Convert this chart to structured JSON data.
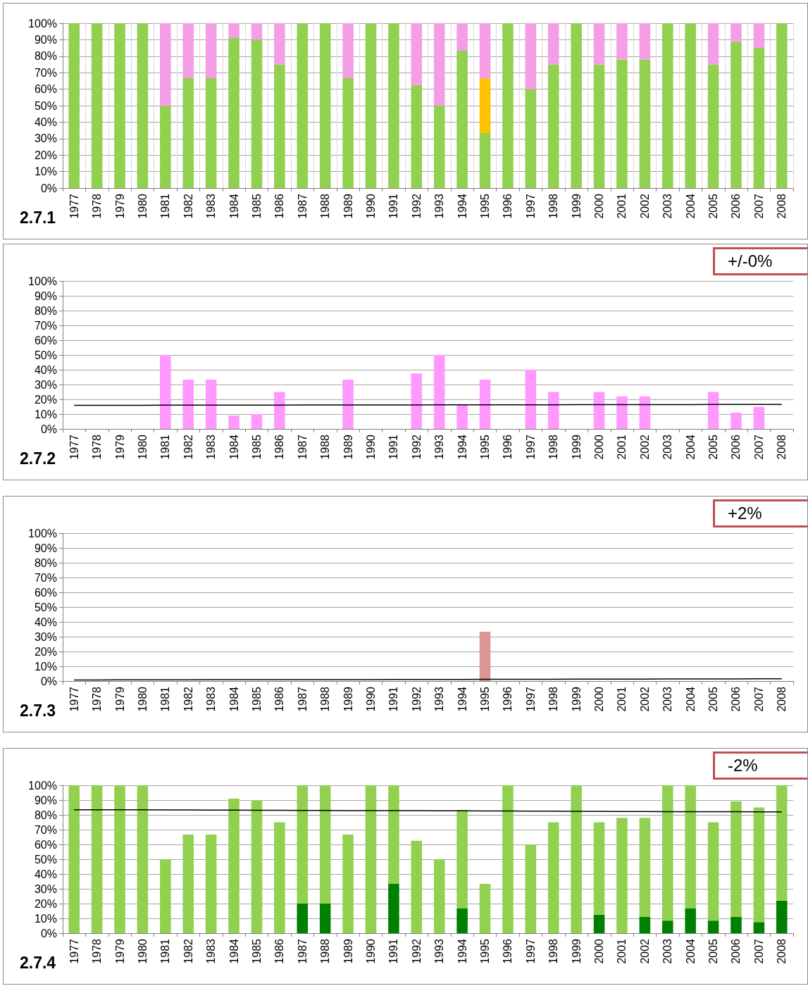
{
  "chart_data": [
    {
      "type": "bar",
      "title": "2.7.1",
      "stacked": true,
      "grid": true,
      "categories": [
        "1977",
        "1978",
        "1979",
        "1980",
        "1981",
        "1982",
        "1983",
        "1984",
        "1985",
        "1986",
        "1987",
        "1988",
        "1989",
        "1990",
        "1991",
        "1992",
        "1993",
        "1994",
        "1995",
        "1996",
        "1997",
        "1998",
        "1999",
        "2000",
        "2001",
        "2002",
        "2003",
        "2004",
        "2005",
        "2006",
        "2007",
        "2008"
      ],
      "ylim": [
        0,
        100
      ],
      "yticks": [
        {
          "value": 0,
          "label": "0%"
        },
        {
          "value": 10,
          "label": "10%"
        },
        {
          "value": 20,
          "label": "20%"
        },
        {
          "value": 30,
          "label": "30%"
        },
        {
          "value": 40,
          "label": "40%"
        },
        {
          "value": 50,
          "label": "50%"
        },
        {
          "value": 60,
          "label": "60%"
        },
        {
          "value": 70,
          "label": "70%"
        },
        {
          "value": 80,
          "label": "80%"
        },
        {
          "value": 90,
          "label": "90%"
        },
        {
          "value": 100,
          "label": "100%"
        }
      ],
      "series": [
        {
          "color": "#92d050",
          "values": [
            100,
            100,
            100,
            100,
            50,
            66.7,
            66.7,
            91,
            90,
            75,
            100,
            100,
            66.7,
            100,
            100,
            62.5,
            50,
            83.3,
            33.3,
            100,
            60,
            75,
            100,
            75,
            78,
            78,
            100,
            100,
            75,
            89,
            85,
            100
          ]
        },
        {
          "color": "#ffc000",
          "values": [
            null,
            null,
            null,
            null,
            null,
            null,
            null,
            null,
            null,
            null,
            null,
            null,
            null,
            null,
            null,
            null,
            null,
            null,
            33.3,
            null,
            null,
            null,
            null,
            null,
            null,
            null,
            null,
            null,
            null,
            null,
            null,
            null
          ]
        },
        {
          "color": "#f59ee6",
          "values": [
            null,
            null,
            null,
            null,
            50,
            33.3,
            33.3,
            9,
            10,
            25,
            null,
            null,
            33.3,
            null,
            null,
            37.5,
            50,
            16.7,
            33.3,
            null,
            40,
            25,
            null,
            25,
            22,
            22,
            null,
            null,
            25,
            11,
            15,
            null
          ]
        }
      ]
    },
    {
      "type": "bar",
      "title": "2.7.2",
      "grid": "y",
      "annotations": [
        "+/-0%"
      ],
      "categories": [
        "1977",
        "1978",
        "1979",
        "1980",
        "1981",
        "1982",
        "1983",
        "1984",
        "1985",
        "1986",
        "1987",
        "1988",
        "1989",
        "1990",
        "1991",
        "1992",
        "1993",
        "1994",
        "1995",
        "1996",
        "1997",
        "1998",
        "1999",
        "2000",
        "2001",
        "2002",
        "2003",
        "2004",
        "2005",
        "2006",
        "2007",
        "2008"
      ],
      "ylim": [
        0,
        100
      ],
      "yticks": [
        {
          "value": 0,
          "label": "0%"
        },
        {
          "value": 10,
          "label": "10%"
        },
        {
          "value": 20,
          "label": "20%"
        },
        {
          "value": 30,
          "label": "30%"
        },
        {
          "value": 40,
          "label": "40%"
        },
        {
          "value": 50,
          "label": "50%"
        },
        {
          "value": 60,
          "label": "60%"
        },
        {
          "value": 70,
          "label": "70%"
        },
        {
          "value": 80,
          "label": "80%"
        },
        {
          "value": 90,
          "label": "90%"
        },
        {
          "value": 100,
          "label": "100%"
        }
      ],
      "series": [
        {
          "color": "#ff99ff",
          "values": [
            null,
            null,
            null,
            null,
            50,
            33.3,
            33.3,
            9,
            10,
            25,
            null,
            null,
            33.3,
            null,
            null,
            37.5,
            50,
            16.7,
            33.3,
            null,
            40,
            25,
            null,
            25,
            22,
            22,
            null,
            null,
            25,
            11,
            15,
            null
          ]
        },
        {
          "type": "line",
          "color": "#000000",
          "values": [
            16.0,
            16.0,
            16.0,
            16.0,
            16.1,
            16.1,
            16.1,
            16.1,
            16.1,
            16.1,
            16.2,
            16.2,
            16.2,
            16.2,
            16.2,
            16.2,
            16.3,
            16.3,
            16.3,
            16.3,
            16.3,
            16.3,
            16.4,
            16.4,
            16.4,
            16.4,
            16.4,
            16.4,
            16.5,
            16.5,
            16.5,
            16.5
          ]
        }
      ]
    },
    {
      "type": "bar",
      "title": "2.7.3",
      "grid": "y",
      "annotations": [
        "+2%"
      ],
      "categories": [
        "1977",
        "1978",
        "1979",
        "1980",
        "1981",
        "1982",
        "1983",
        "1984",
        "1985",
        "1986",
        "1987",
        "1988",
        "1989",
        "1990",
        "1991",
        "1992",
        "1993",
        "1994",
        "1995",
        "1996",
        "1997",
        "1998",
        "1999",
        "2000",
        "2001",
        "2002",
        "2003",
        "2004",
        "2005",
        "2006",
        "2007",
        "2008"
      ],
      "ylim": [
        0,
        100
      ],
      "yticks": [
        {
          "value": 0,
          "label": "0%"
        },
        {
          "value": 10,
          "label": "10%"
        },
        {
          "value": 20,
          "label": "20%"
        },
        {
          "value": 30,
          "label": "30%"
        },
        {
          "value": 40,
          "label": "40%"
        },
        {
          "value": 50,
          "label": "50%"
        },
        {
          "value": 60,
          "label": "60%"
        },
        {
          "value": 70,
          "label": "70%"
        },
        {
          "value": 80,
          "label": "80%"
        },
        {
          "value": 90,
          "label": "90%"
        },
        {
          "value": 100,
          "label": "100%"
        }
      ],
      "series": [
        {
          "color": "#d99694",
          "values": [
            null,
            null,
            null,
            null,
            null,
            null,
            null,
            null,
            null,
            null,
            null,
            null,
            null,
            null,
            null,
            null,
            null,
            null,
            33.3,
            null,
            null,
            null,
            null,
            null,
            null,
            null,
            null,
            null,
            null,
            null,
            null,
            null
          ]
        },
        {
          "type": "line",
          "color": "#000000",
          "values": [
            0.7,
            0.7,
            0.8,
            0.8,
            0.8,
            0.8,
            0.9,
            0.9,
            0.9,
            0.9,
            1.0,
            1.0,
            1.0,
            1.0,
            1.1,
            1.1,
            1.1,
            1.1,
            1.2,
            1.2,
            1.2,
            1.2,
            1.3,
            1.3,
            1.3,
            1.3,
            1.4,
            1.4,
            1.4,
            1.4,
            1.5,
            1.5
          ]
        }
      ]
    },
    {
      "type": "bar",
      "title": "2.7.4",
      "stacked": true,
      "grid": "y",
      "annotations": [
        "-2%"
      ],
      "categories": [
        "1977",
        "1978",
        "1979",
        "1980",
        "1981",
        "1982",
        "1983",
        "1984",
        "1985",
        "1986",
        "1987",
        "1988",
        "1989",
        "1990",
        "1991",
        "1992",
        "1993",
        "1994",
        "1995",
        "1996",
        "1997",
        "1998",
        "1999",
        "2000",
        "2001",
        "2002",
        "2003",
        "2004",
        "2005",
        "2006",
        "2007",
        "2008"
      ],
      "ylim": [
        0,
        100
      ],
      "yticks": [
        {
          "value": 0,
          "label": "0%"
        },
        {
          "value": 10,
          "label": "10%"
        },
        {
          "value": 20,
          "label": "20%"
        },
        {
          "value": 30,
          "label": "30%"
        },
        {
          "value": 40,
          "label": "40%"
        },
        {
          "value": 50,
          "label": "50%"
        },
        {
          "value": 60,
          "label": "60%"
        },
        {
          "value": 70,
          "label": "70%"
        },
        {
          "value": 80,
          "label": "80%"
        },
        {
          "value": 90,
          "label": "90%"
        },
        {
          "value": 100,
          "label": "100%"
        }
      ],
      "series": [
        {
          "color": "#008000",
          "values": [
            null,
            null,
            null,
            null,
            null,
            null,
            null,
            null,
            null,
            null,
            20,
            20,
            null,
            null,
            33.3,
            null,
            null,
            16.7,
            null,
            null,
            null,
            null,
            null,
            12.5,
            null,
            11,
            8.5,
            16.7,
            8.5,
            11,
            7.5,
            22
          ]
        },
        {
          "color": "#92d050",
          "values": [
            100,
            100,
            100,
            100,
            50,
            66.7,
            66.7,
            91,
            90,
            75,
            80,
            80,
            66.7,
            100,
            66.7,
            62.5,
            50,
            66.6,
            33.3,
            100,
            60,
            75,
            100,
            62.5,
            78,
            67,
            91.5,
            83.3,
            66.5,
            78,
            77.5,
            78
          ]
        },
        {
          "type": "line",
          "color": "#000000",
          "values": [
            83.5,
            83.5,
            83.4,
            83.4,
            83.3,
            83.3,
            83.2,
            83.2,
            83.1,
            83.1,
            83.0,
            83.0,
            82.9,
            82.9,
            82.8,
            82.8,
            82.7,
            82.7,
            82.6,
            82.6,
            82.5,
            82.5,
            82.4,
            82.4,
            82.3,
            82.3,
            82.2,
            82.2,
            82.1,
            82.1,
            82.0,
            82.0
          ]
        }
      ]
    }
  ]
}
